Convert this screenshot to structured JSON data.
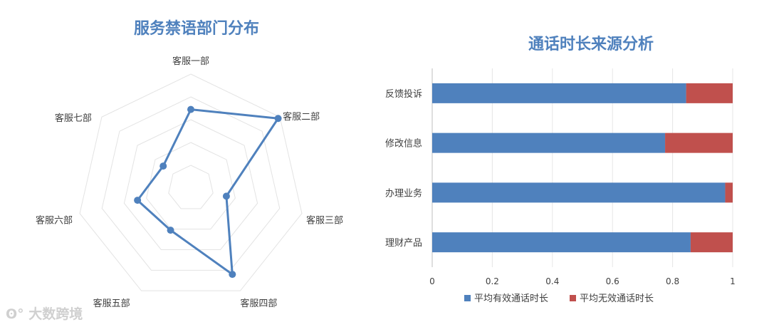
{
  "chart_data": [
    {
      "type": "radar",
      "title": "服务禁语部门分布",
      "categories": [
        "客服一部",
        "客服二部",
        "客服三部",
        "客服四部",
        "客服五部",
        "客服六部",
        "客服七部"
      ],
      "values": [
        0.69,
        0.98,
        0.32,
        0.84,
        0.41,
        0.48,
        0.31
      ],
      "range": [
        0,
        1
      ],
      "gridlines": 5,
      "series_color": "#4f81bd"
    },
    {
      "type": "bar",
      "orientation": "horizontal",
      "stacked": true,
      "title": "通话时长来源分析",
      "categories": [
        "反馈投诉",
        "修改信息",
        "办理业务",
        "理财产品"
      ],
      "series": [
        {
          "name": "平均有效通话时长",
          "values": [
            0.845,
            0.775,
            0.975,
            0.86
          ],
          "color": "#4f81bd"
        },
        {
          "name": "平均无效通话时长",
          "values": [
            0.155,
            0.225,
            0.025,
            0.14
          ],
          "color": "#c0504d"
        }
      ],
      "xlim": [
        0,
        1
      ],
      "xticks": [
        "0",
        "0.2",
        "0.4",
        "0.6",
        "0.8",
        "1"
      ],
      "grid": true,
      "legend": "bottom"
    }
  ],
  "watermark": "大数跨境"
}
